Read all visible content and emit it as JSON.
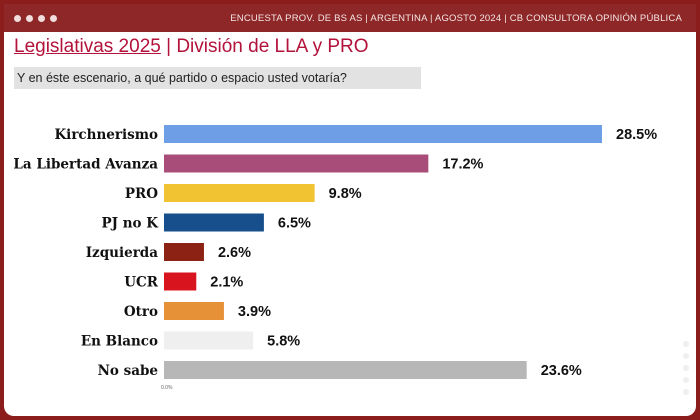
{
  "header": {
    "text": "ENCUESTA PROV. DE BS AS |  ARGENTINA  | AGOSTO  2024 | CB CONSULTORA OPINIÓN PÚBLICA"
  },
  "title": {
    "part1": "Legislativas 2025",
    "separator": " | ",
    "part2": "División de LLA y PRO"
  },
  "question": "Y en éste escenario, a qué partido o espacio usted votaría?",
  "colors": {
    "frame": "#8b1d1d",
    "title": "#b3123a"
  },
  "chart_data": {
    "type": "bar",
    "orientation": "horizontal",
    "title": "",
    "xlabel": "",
    "ylabel": "",
    "x_tick": "0.0%",
    "xlim": [
      0,
      28.5
    ],
    "grid": false,
    "categories": [
      "Kirchnerismo",
      "La Libertad Avanza",
      "PRO",
      "PJ no K",
      "Izquierda",
      "UCR",
      "Otro",
      "En Blanco",
      "No sabe"
    ],
    "values": [
      28.5,
      17.2,
      9.8,
      6.5,
      2.6,
      2.1,
      3.9,
      5.8,
      23.6
    ],
    "labels": [
      "28.5%",
      "17.2%",
      "9.8%",
      "6.5%",
      "2.6%",
      "2.1%",
      "3.9%",
      "5.8%",
      "23.6%"
    ],
    "colors": [
      "#6d9ee6",
      "#a84d7a",
      "#f1c232",
      "#164f8c",
      "#8b2213",
      "#d8141e",
      "#e69138",
      "#efefef",
      "#b7b7b7"
    ]
  }
}
